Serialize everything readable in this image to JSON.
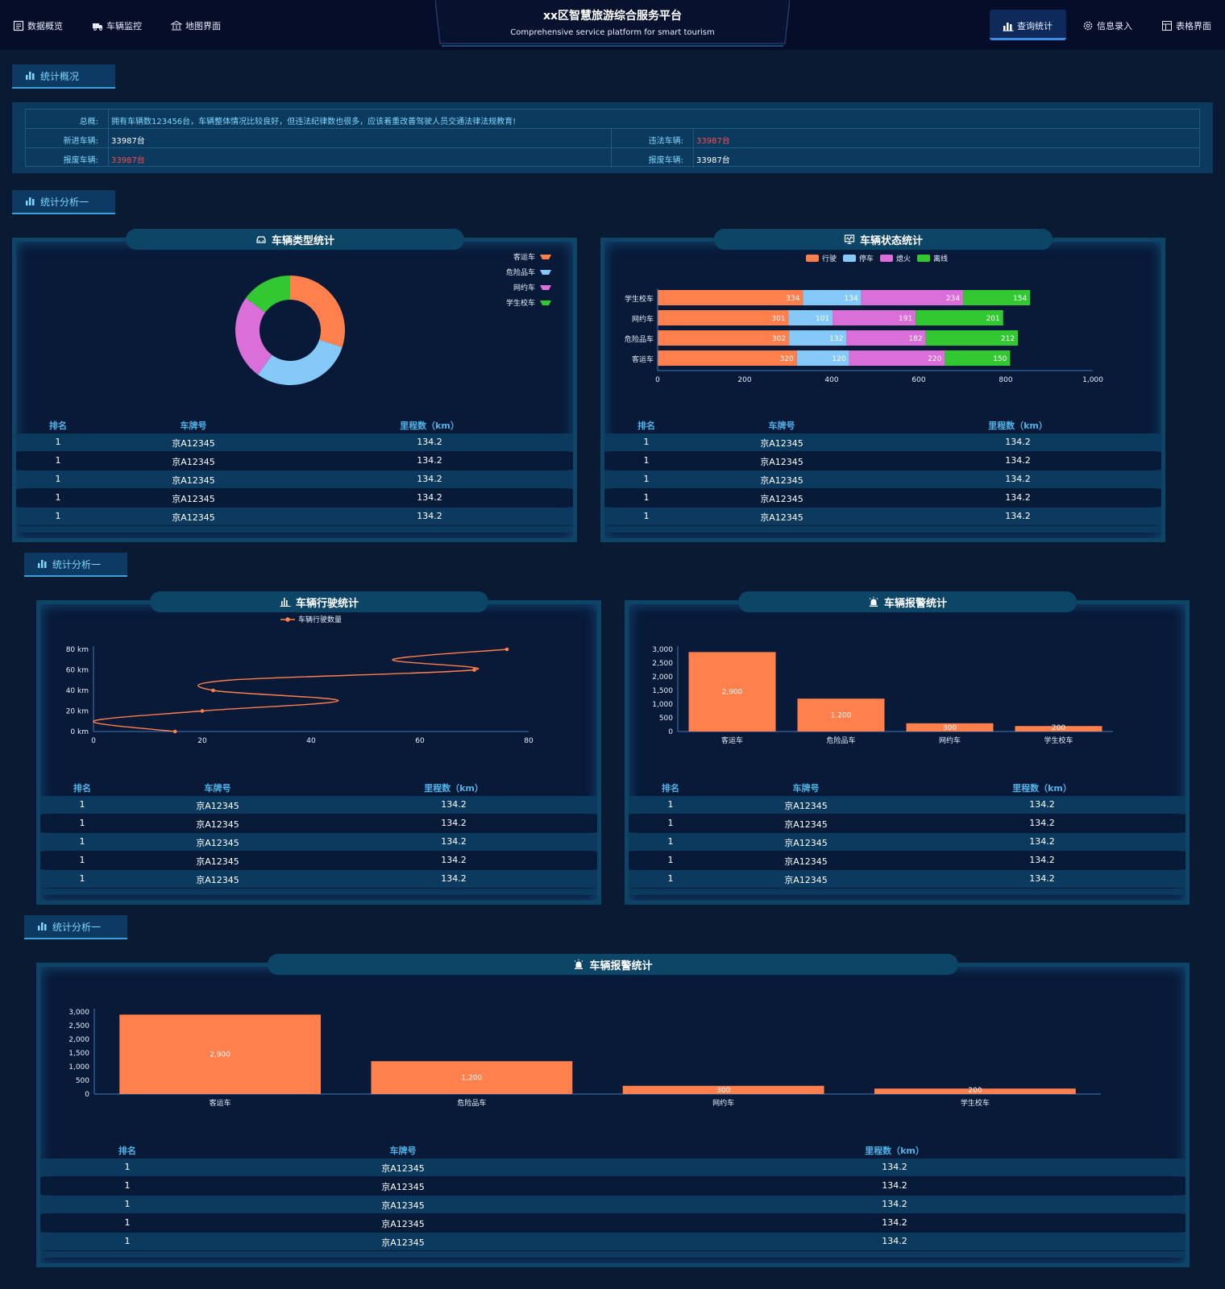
{
  "header": {
    "title": "xx区智慧旅游综合服务平台",
    "subtitle": "Comprehensive service platform for smart tourism",
    "nav_left": [
      "数据概览",
      "车辆监控",
      "地图界面"
    ],
    "nav_right": [
      "查询统计",
      "信息录入",
      "表格界面"
    ]
  },
  "sections": {
    "overview": "统计概况",
    "analysis1": "统计分析一",
    "analysis2": "统计分析一",
    "analysis3": "统计分析一"
  },
  "overview": {
    "summary_label": "总概:",
    "summary_text": "拥有车辆数123456台，车辆整体情况比较良好，但违法纪律数也很多，应该着重改善驾驶人员交通法律法规教育!",
    "new_label": "新进车辆:",
    "new_value": "33987台",
    "illegal_label": "违法车辆:",
    "illegal_value": "33987台",
    "scrap_label": "报废车辆:",
    "scrap_value": "33987台",
    "scrap2_label": "报废车辆:",
    "scrap2_value": "33987台",
    "alert_color": "#ff4d4f"
  },
  "panels": {
    "type_title": "车辆类型统计",
    "status_title": "车辆状态统计",
    "travel_title": "车辆行驶统计",
    "alarm_title": "车辆报警统计",
    "alarm2_title": "车辆报警统计"
  },
  "table": {
    "headers": [
      "排名",
      "车牌号",
      "里程数（km）"
    ],
    "rows": [
      [
        "1",
        "京A12345",
        "134.2"
      ],
      [
        "1",
        "京A12345",
        "134.2"
      ],
      [
        "1",
        "京A12345",
        "134.2"
      ],
      [
        "1",
        "京A12345",
        "134.2"
      ],
      [
        "1",
        "京A12345",
        "134.2"
      ]
    ]
  },
  "chart_data": [
    {
      "type": "pie",
      "donut": true,
      "labels": [
        "客运车",
        "危险品车",
        "网约车",
        "学生校车"
      ],
      "values": [
        30,
        30,
        25,
        15
      ],
      "colors": [
        "#ff7f4d",
        "#85c9f9",
        "#db6fd9",
        "#32c832"
      ],
      "legend": "top-right"
    },
    {
      "type": "bar",
      "orientation": "horizontal",
      "stacked": true,
      "categories": [
        "客运车",
        "危险品车",
        "网约车",
        "学生校车"
      ],
      "series": [
        {
          "name": "行驶",
          "values": [
            320,
            302,
            301,
            334
          ],
          "color": "#ff7f4d"
        },
        {
          "name": "停车",
          "values": [
            120,
            132,
            101,
            134
          ],
          "color": "#85c9f9"
        },
        {
          "name": "熄火",
          "values": [
            220,
            182,
            191,
            234
          ],
          "color": "#db6fd9"
        },
        {
          "name": "离线",
          "values": [
            150,
            212,
            201,
            154
          ],
          "color": "#32c832"
        }
      ],
      "xticks": [
        "0",
        "200",
        "400",
        "600",
        "800",
        "1,000"
      ],
      "xlim": [
        0,
        1000
      ],
      "legend": "top"
    },
    {
      "type": "line",
      "smooth": true,
      "series": [
        {
          "name": "车辆行驶数量",
          "color": "#ff7f4d",
          "points": [
            [
              15,
              0
            ],
            [
              0,
              10
            ],
            [
              20,
              20
            ],
            [
              45,
              30
            ],
            [
              22,
              40
            ],
            [
              25,
              50
            ],
            [
              70,
              60
            ],
            [
              55,
              70
            ],
            [
              76,
              80
            ]
          ]
        }
      ],
      "xticks": [
        "0",
        "20",
        "40",
        "60",
        "80"
      ],
      "yticks": [
        "0 km",
        "20 km",
        "40 km",
        "60 km",
        "80 km"
      ],
      "xlim": [
        0,
        80
      ],
      "ylim": [
        0,
        80
      ],
      "legend": "top"
    },
    {
      "type": "bar",
      "categories": [
        "客运车",
        "危险品车",
        "网约车",
        "学生校车"
      ],
      "values": [
        2900,
        1200,
        300,
        200
      ],
      "data_labels": [
        "2,900",
        "1,200",
        "300",
        "200"
      ],
      "yticks": [
        "0",
        "500",
        "1,000",
        "1,500",
        "2,000",
        "2,500",
        "3,000"
      ],
      "ylim": [
        0,
        3000
      ],
      "color": "#ff7f4d"
    },
    {
      "type": "bar",
      "categories": [
        "客运车",
        "危险品车",
        "网约车",
        "学生校车"
      ],
      "values": [
        2900,
        1200,
        300,
        200
      ],
      "data_labels": [
        "2,900",
        "1,200",
        "300",
        "200"
      ],
      "yticks": [
        "0",
        "500",
        "1,000",
        "1,500",
        "2,000",
        "2,500",
        "3,000"
      ],
      "ylim": [
        0,
        3000
      ],
      "color": "#ff7f4d"
    }
  ]
}
